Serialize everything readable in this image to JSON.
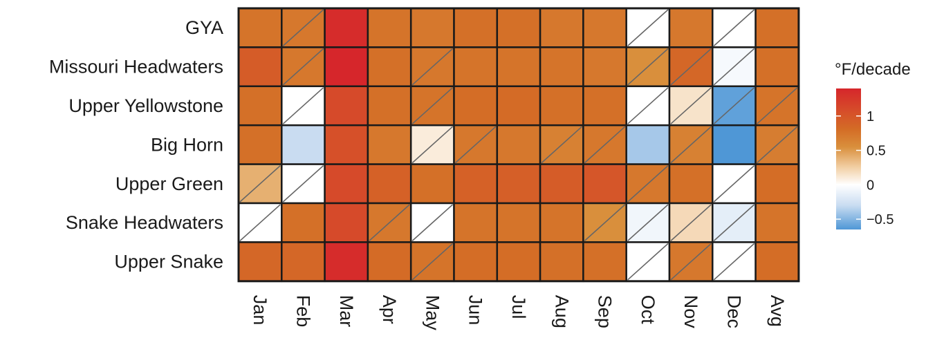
{
  "chart_data": {
    "type": "heatmap",
    "title": "",
    "xlabel": "",
    "ylabel": "",
    "columns": [
      "Jan",
      "Feb",
      "Mar",
      "Apr",
      "May",
      "Jun",
      "Jul",
      "Aug",
      "Sep",
      "Oct",
      "Nov",
      "Dec",
      "Avg"
    ],
    "rows": [
      "GYA",
      "Missouri Headwaters",
      "Upper Yellowstone",
      "Big Horn",
      "Upper Green",
      "Snake Headwaters",
      "Upper Snake"
    ],
    "values": [
      [
        0.75,
        0.72,
        1.35,
        0.75,
        0.72,
        0.78,
        0.78,
        0.72,
        0.72,
        0.0,
        0.72,
        0.0,
        0.78
      ],
      [
        0.95,
        0.72,
        1.4,
        0.78,
        0.72,
        0.75,
        0.75,
        0.75,
        0.72,
        0.55,
        0.85,
        -0.05,
        0.78
      ],
      [
        0.78,
        0.0,
        1.1,
        0.78,
        0.75,
        0.8,
        0.82,
        0.78,
        0.78,
        0.0,
        0.15,
        -0.6,
        0.75
      ],
      [
        0.78,
        -0.3,
        1.05,
        0.72,
        0.1,
        0.72,
        0.72,
        0.65,
        0.72,
        -0.4,
        0.65,
        -0.65,
        0.68
      ],
      [
        0.4,
        0.0,
        1.1,
        0.9,
        0.78,
        0.9,
        0.92,
        0.95,
        1.0,
        0.72,
        0.78,
        0.0,
        0.8
      ],
      [
        0.0,
        0.78,
        1.1,
        0.72,
        0.0,
        0.75,
        0.75,
        0.75,
        0.55,
        -0.08,
        0.2,
        -0.15,
        0.75
      ],
      [
        0.85,
        0.85,
        1.35,
        0.82,
        0.75,
        0.8,
        0.8,
        0.78,
        0.78,
        0.0,
        0.72,
        0.0,
        0.8
      ]
    ],
    "not_significant": [
      [
        false,
        true,
        false,
        false,
        false,
        false,
        false,
        false,
        false,
        true,
        false,
        true,
        false
      ],
      [
        false,
        true,
        false,
        false,
        true,
        false,
        false,
        false,
        false,
        true,
        true,
        true,
        false
      ],
      [
        false,
        true,
        false,
        false,
        true,
        false,
        false,
        false,
        false,
        true,
        true,
        true,
        true
      ],
      [
        false,
        false,
        false,
        false,
        true,
        true,
        false,
        true,
        true,
        false,
        true,
        false,
        true
      ],
      [
        true,
        true,
        false,
        false,
        false,
        false,
        false,
        false,
        false,
        true,
        false,
        true,
        false
      ],
      [
        true,
        false,
        false,
        true,
        true,
        false,
        false,
        false,
        true,
        true,
        true,
        true,
        false
      ],
      [
        false,
        false,
        false,
        false,
        true,
        false,
        false,
        false,
        false,
        true,
        true,
        true,
        false
      ]
    ],
    "color_scale": {
      "min": -0.65,
      "max": 1.4,
      "stops": [
        {
          "value": -0.65,
          "color": "#4f97d6"
        },
        {
          "value": -0.3,
          "color": "#c9dcf1"
        },
        {
          "value": 0.0,
          "color": "#ffffff"
        },
        {
          "value": 0.25,
          "color": "#f2d0a6"
        },
        {
          "value": 0.55,
          "color": "#d98f3c"
        },
        {
          "value": 0.8,
          "color": "#d46d26"
        },
        {
          "value": 1.1,
          "color": "#d64a2a"
        },
        {
          "value": 1.4,
          "color": "#d6262b"
        }
      ]
    },
    "legend": {
      "title": "°F/decade",
      "ticks": [
        {
          "value": 1,
          "label": "1"
        },
        {
          "value": 0.5,
          "label": "0.5"
        },
        {
          "value": 0,
          "label": "0"
        },
        {
          "value": -0.5,
          "label": "−0.5"
        }
      ],
      "placement": "right"
    },
    "grid": false,
    "cell_border_color": "#1a1a1a",
    "hatch_color": "#666666"
  }
}
